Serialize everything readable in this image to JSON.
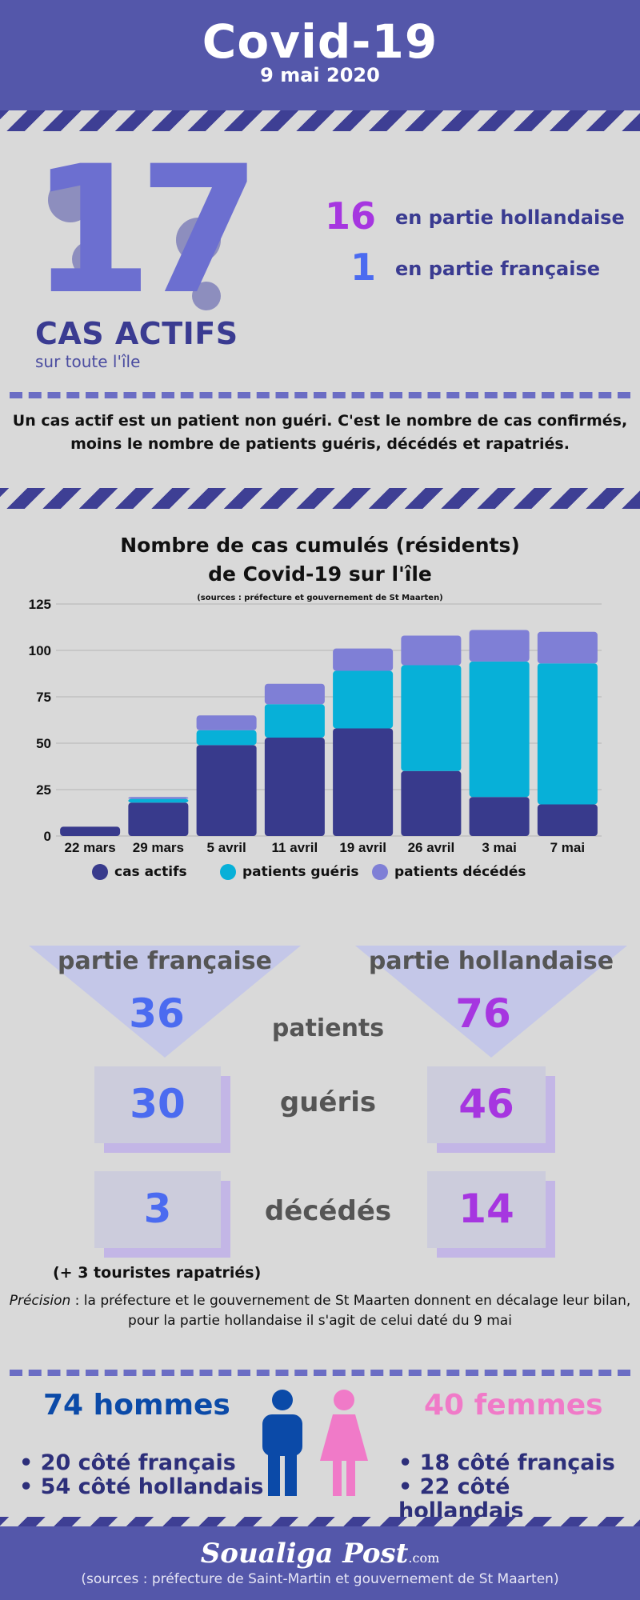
{
  "header": {
    "title": "Covid-19",
    "date": "9 mai 2020"
  },
  "active": {
    "total": "17",
    "label": "CAS ACTIFS",
    "sublabel": "sur toute l'île",
    "dutch_count": "16",
    "dutch_label": "en partie hollandaise",
    "french_count": "1",
    "french_label": "en partie française"
  },
  "definition": {
    "line1": "Un cas actif est un patient non guéri. C'est le nombre de cas confirmés,",
    "line2": "moins le nombre de patients guéris, décédés et rapatriés."
  },
  "chart_data": {
    "type": "bar",
    "stacked": true,
    "title_line1": "Nombre de  cas cumulés (résidents)",
    "title_line2": "de Covid-19 sur l'île",
    "source": "(sources : préfecture et gouvernement de St Maarten)",
    "categories": [
      "22 mars",
      "29 mars",
      "5 avril",
      "11 avril",
      "19 avril",
      "26 avril",
      "3 mai",
      "7 mai"
    ],
    "series": [
      {
        "name": "cas actifs",
        "color": "#383a8c",
        "values": [
          5,
          18,
          49,
          53,
          58,
          35,
          21,
          17
        ]
      },
      {
        "name": "patients guéris",
        "color": "#07b0d8",
        "values": [
          0,
          2,
          8,
          18,
          31,
          57,
          73,
          76
        ]
      },
      {
        "name": "patients décédés",
        "color": "#7f7fd6",
        "values": [
          0,
          1,
          8,
          11,
          12,
          16,
          17,
          17
        ]
      }
    ],
    "ylim": [
      0,
      125
    ],
    "yticks": [
      0,
      25,
      50,
      75,
      100,
      125
    ],
    "grid": true,
    "legend": "bottom"
  },
  "split": {
    "french_title": "partie française",
    "dutch_title": "partie hollandaise",
    "patients_label": "patients",
    "french_patients": "36",
    "dutch_patients": "76",
    "gueris_label": "guéris",
    "french_gueris": "30",
    "dutch_gueris": "46",
    "deces_label": "décédés",
    "french_deces": "3",
    "dutch_deces": "14",
    "tourists_note": "(+ 3 touristes rapatriés)",
    "french_color": "#4b6bf0",
    "dutch_color": "#a636e0"
  },
  "precision": {
    "label": "Précision",
    "line1": " : la préfecture et le gouvernement de St Maarten donnent en décalage leur bilan,",
    "line2": "pour la partie hollandaise il s'agit de celui daté du 9 mai"
  },
  "gender": {
    "men_title": "74 hommes",
    "men_items": [
      "• 20 côté français",
      "• 54 côté hollandais"
    ],
    "women_title": "40 femmes",
    "women_items": [
      "• 18 côté français",
      "• 22 côté hollandais"
    ],
    "men_color": "#0b4aa8",
    "women_color": "#f07ac8"
  },
  "footer": {
    "logo": "Soualiga Post",
    "logo_suffix": ".com",
    "source": "(sources : préfecture de Saint-Martin et gouvernement de St Maarten)"
  }
}
